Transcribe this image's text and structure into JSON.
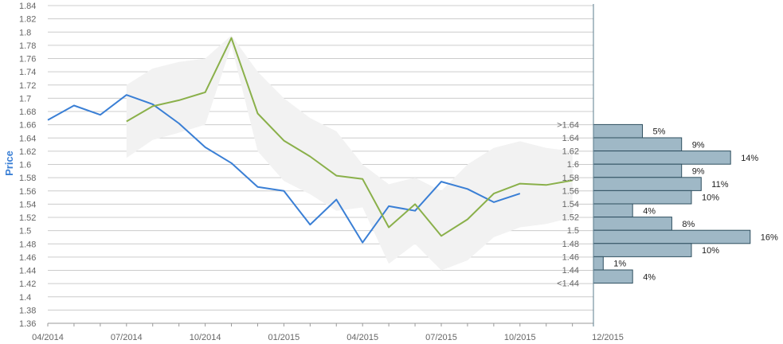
{
  "chart_data": {
    "type": "line",
    "ylabel": "Price",
    "xlabel": "",
    "ylim": [
      1.36,
      1.84
    ],
    "y_ticks": [
      "1.36",
      "1.38",
      "1.4",
      "1.42",
      "1.44",
      "1.46",
      "1.48",
      "1.5",
      "1.52",
      "1.54",
      "1.56",
      "1.58",
      "1.6",
      "1.62",
      "1.64",
      "1.66",
      "1.68",
      "1.7",
      "1.72",
      "1.74",
      "1.76",
      "1.78",
      "1.8",
      "1.82",
      "1.84"
    ],
    "x_tick_labels": [
      "04/2014",
      "07/2014",
      "10/2014",
      "01/2015",
      "04/2015",
      "07/2015",
      "10/2015",
      "12/2015"
    ],
    "grid": true,
    "series": [
      {
        "color": "#3a7fd5",
        "x": [
          "2014-04",
          "2014-05",
          "2014-06",
          "2014-07",
          "2014-08",
          "2014-09",
          "2014-10",
          "2014-11",
          "2014-12",
          "2015-01",
          "2015-02",
          "2015-03",
          "2015-04",
          "2015-05",
          "2015-06",
          "2015-07",
          "2015-08",
          "2015-09",
          "2015-10"
        ],
        "values": [
          1.667,
          1.689,
          1.675,
          1.705,
          1.691,
          1.662,
          1.626,
          1.602,
          1.566,
          1.56,
          1.509,
          1.547,
          1.482,
          1.537,
          1.53,
          1.574,
          1.563,
          1.543,
          1.556
        ]
      },
      {
        "color": "#8ab04a",
        "x": [
          "2014-07",
          "2014-08",
          "2014-09",
          "2014-10",
          "2014-11",
          "2014-12",
          "2015-01",
          "2015-02",
          "2015-03",
          "2015-04",
          "2015-05",
          "2015-06",
          "2015-07",
          "2015-08",
          "2015-09",
          "2015-10",
          "2015-11",
          "2015-12"
        ],
        "values": [
          1.665,
          1.688,
          1.697,
          1.709,
          1.791,
          1.677,
          1.636,
          1.612,
          1.583,
          1.578,
          1.505,
          1.54,
          1.492,
          1.517,
          1.556,
          1.571,
          1.569,
          1.576
        ]
      }
    ],
    "band": {
      "color": "#f2f2f2",
      "x": [
        "2014-07",
        "2014-08",
        "2014-09",
        "2014-10",
        "2014-11",
        "2014-12",
        "2015-01",
        "2015-02",
        "2015-03",
        "2015-04",
        "2015-05",
        "2015-06",
        "2015-07",
        "2015-08",
        "2015-09",
        "2015-10",
        "2015-11",
        "2015-12"
      ],
      "upper": [
        1.72,
        1.745,
        1.755,
        1.76,
        1.795,
        1.74,
        1.7,
        1.67,
        1.65,
        1.6,
        1.57,
        1.58,
        1.56,
        1.6,
        1.625,
        1.635,
        1.625,
        1.62
      ],
      "lower": [
        1.61,
        1.637,
        1.648,
        1.66,
        1.78,
        1.62,
        1.575,
        1.555,
        1.53,
        1.535,
        1.45,
        1.48,
        1.44,
        1.455,
        1.49,
        1.505,
        1.51,
        1.52
      ]
    },
    "distribution": {
      "color": "#9fb8c6",
      "bins": [
        {
          "label": ">1.64",
          "percent_label": "5%",
          "percent": 5
        },
        {
          "label": "1.64",
          "percent_label": "9%",
          "percent": 9
        },
        {
          "label": "1.62",
          "percent_label": "14%",
          "percent": 14
        },
        {
          "label": "1.6",
          "percent_label": "9%",
          "percent": 9
        },
        {
          "label": "1.58",
          "percent_label": "11%",
          "percent": 11
        },
        {
          "label": "1.56",
          "percent_label": "10%",
          "percent": 10
        },
        {
          "label": "1.54",
          "percent_label": "4%",
          "percent": 4
        },
        {
          "label": "1.52",
          "percent_label": "8%",
          "percent": 8
        },
        {
          "label": "1.5",
          "percent_label": "16%",
          "percent": 16
        },
        {
          "label": "1.48",
          "percent_label": "10%",
          "percent": 10
        },
        {
          "label": "1.46",
          "percent_label": "1%",
          "percent": 1
        },
        {
          "label": "1.44",
          "percent_label": "4%",
          "percent": 4
        },
        {
          "label": "<1.44",
          "percent_label": "",
          "percent": 0
        }
      ]
    }
  }
}
